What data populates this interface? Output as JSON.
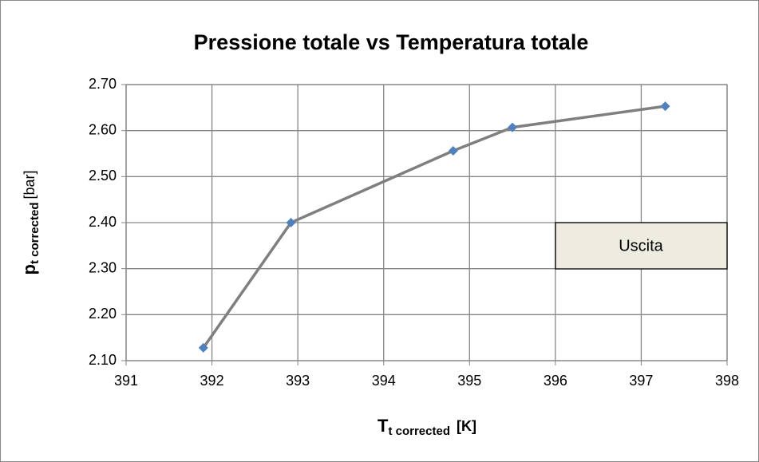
{
  "chart_data": {
    "type": "line",
    "title": "Pressione totale  vs Temperatura totale",
    "x_label": {
      "main": "T",
      "sub": "t corrected",
      "unit": "[K]"
    },
    "y_label": {
      "main": "p",
      "sub": "t corrected",
      "unit": "[bar]"
    },
    "annotation": "Uscita",
    "series": [
      {
        "name": "Uscita",
        "color": "#7f7f7f",
        "marker_color": "#4f81bd",
        "x": [
          391.9,
          392.92,
          394.81,
          395.5,
          397.28
        ],
        "values": [
          2.128,
          2.4,
          2.556,
          2.607,
          2.653
        ]
      }
    ],
    "xlim": [
      391,
      398
    ],
    "xticks": [
      391,
      392,
      393,
      394,
      395,
      396,
      397,
      398
    ],
    "ylim": [
      2.1,
      2.7
    ],
    "yticks": [
      {
        "value": 2.1,
        "label": "2.10"
      },
      {
        "value": 2.2,
        "label": "2.20"
      },
      {
        "value": 2.3,
        "label": "2.30"
      },
      {
        "value": 2.4,
        "label": "2.40"
      },
      {
        "value": 2.5,
        "label": "2.50"
      },
      {
        "value": 2.6,
        "label": "2.60"
      },
      {
        "value": 2.7,
        "label": "2.70"
      }
    ],
    "grid": true
  }
}
